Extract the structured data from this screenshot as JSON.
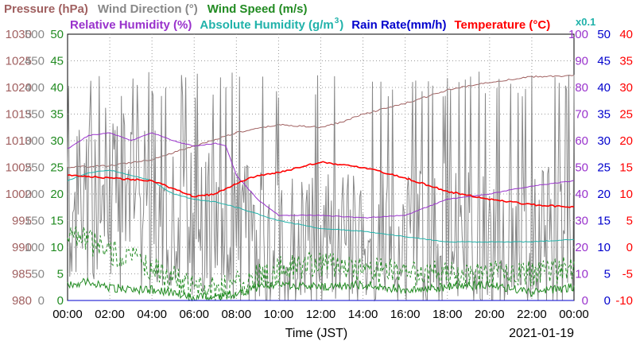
{
  "chart_data": {
    "type": "line",
    "date": "2021-01-19",
    "xlabel": "Time (JST)",
    "x_ticks": [
      "00:00",
      "02:00",
      "04:00",
      "06:00",
      "08:00",
      "10:00",
      "12:00",
      "14:00",
      "16:00",
      "18:00",
      "20:00",
      "22:00",
      "00:00"
    ],
    "multiplier_label": "x0.1",
    "grid": true,
    "axes": [
      {
        "id": "pressure",
        "label": "Pressure (hPa)",
        "color": "#a06060",
        "side": "left",
        "ylim": [
          980,
          1030
        ],
        "ticks": [
          "980",
          "985",
          "990",
          "995",
          "1000",
          "1005",
          "1010",
          "1015",
          "1020",
          "1025",
          "1030"
        ]
      },
      {
        "id": "wind_dir",
        "label": "Wind Direction (°)",
        "color": "#888888",
        "side": "left",
        "ylim": [
          0,
          500
        ],
        "ticks": [
          "0",
          "50",
          "100",
          "150",
          "200",
          "250",
          "300",
          "350",
          "400",
          "450",
          "500"
        ]
      },
      {
        "id": "wind_speed",
        "label": "Wind Speed (m/s)",
        "color": "#228b22",
        "side": "left",
        "ylim": [
          0,
          50
        ],
        "ticks": [
          "0",
          "5",
          "10",
          "15",
          "20",
          "25",
          "30",
          "35",
          "40",
          "45",
          "50"
        ]
      },
      {
        "id": "rh",
        "label": "Relative Humidity (%)",
        "color": "#9932cc",
        "side": "right",
        "ylim": [
          0,
          100
        ],
        "ticks": [
          "0",
          "10",
          "20",
          "30",
          "40",
          "50",
          "60",
          "70",
          "80",
          "90",
          "100"
        ]
      },
      {
        "id": "rain",
        "label": "Rain Rate(mm/h)",
        "color": "#0000cd",
        "side": "right",
        "ylim": [
          0,
          50
        ],
        "ticks": [
          "0",
          "5",
          "10",
          "15",
          "20",
          "25",
          "30",
          "35",
          "40",
          "45",
          "50"
        ]
      },
      {
        "id": "temp",
        "label": "Temperature (°C)",
        "color": "#ff0000",
        "side": "right",
        "ylim": [
          -10,
          40
        ],
        "ticks": [
          "-10",
          "-5",
          "0",
          "5",
          "10",
          "15",
          "20",
          "25",
          "30",
          "35",
          "40"
        ]
      }
    ],
    "abs_humidity_label": "Absolute Humidity (g/m",
    "abs_humidity_sup": "3",
    "abs_humidity_close": ")",
    "abs_humidity_color": "#20b2aa",
    "series": [
      {
        "axis": "pressure",
        "color": "#a06060",
        "x": [
          0,
          2,
          4,
          6,
          8,
          10,
          12,
          13,
          14,
          16,
          18,
          20,
          22,
          24
        ],
        "y": [
          1005,
          1005.3,
          1006.5,
          1009,
          1011.5,
          1013,
          1012.5,
          1013.5,
          1015,
          1017,
          1019.5,
          1021,
          1022,
          1022.2
        ]
      },
      {
        "axis": "wind_dir",
        "color": "#888888",
        "noise": 150,
        "spike": 0.25,
        "x": [
          0,
          1,
          2,
          3,
          4,
          5,
          6,
          7,
          8,
          10,
          12,
          14,
          16,
          18,
          20,
          22,
          24
        ],
        "y": [
          200,
          220,
          230,
          240,
          180,
          170,
          130,
          150,
          120,
          80,
          90,
          100,
          100,
          110,
          100,
          100,
          120
        ]
      },
      {
        "axis": "wind_speed",
        "color": "#228b22",
        "noise": 0.8,
        "x": [
          0,
          1,
          2,
          3,
          4,
          5,
          6,
          7,
          8,
          9,
          10,
          12,
          14,
          16,
          18,
          20,
          22,
          24
        ],
        "y": [
          3,
          3.5,
          2.5,
          2,
          2,
          1.5,
          0.5,
          0.8,
          1,
          2.5,
          3,
          2.5,
          3,
          2,
          2.5,
          3,
          1.5,
          2.5
        ]
      },
      {
        "axis": "wind_speed",
        "color": "#228b22",
        "dashed": true,
        "noise": 2.5,
        "x": [
          0,
          1,
          2,
          3,
          4,
          5,
          6,
          7,
          8,
          10,
          12,
          14,
          16,
          18,
          20,
          22,
          24
        ],
        "y": [
          13,
          11,
          9,
          8,
          6,
          4,
          2,
          2,
          3,
          6,
          7,
          6,
          5,
          5,
          5,
          5,
          6
        ]
      },
      {
        "axis": "rh",
        "color": "#9932cc",
        "x": [
          0,
          1,
          2,
          3,
          4,
          5,
          6,
          7,
          7.5,
          8,
          9,
          10,
          12,
          14,
          16,
          17,
          18,
          20,
          22,
          24
        ],
        "y": [
          57,
          62,
          63,
          60,
          63,
          60,
          58,
          59,
          58,
          47,
          38,
          32,
          32,
          31,
          32,
          35,
          38,
          40,
          43,
          45
        ]
      },
      {
        "axis": "abs_h",
        "color": "#20b2aa",
        "x": [
          0,
          1,
          2,
          3,
          4,
          5,
          6,
          7,
          8,
          10,
          12,
          14,
          16,
          18,
          20,
          22,
          24
        ],
        "y": [
          45,
          48,
          49,
          47,
          45,
          40,
          38,
          37,
          35,
          30,
          27,
          26,
          24,
          22,
          22,
          22,
          23
        ]
      },
      {
        "axis": "temp",
        "color": "#ff0000",
        "x": [
          0,
          2,
          4,
          5,
          6,
          7,
          8,
          9,
          10,
          12,
          13,
          14,
          16,
          18,
          20,
          22,
          24
        ],
        "y": [
          13.5,
          13,
          12.5,
          11,
          9.5,
          10,
          12,
          13.5,
          14,
          16,
          15.5,
          15,
          13,
          10.5,
          9,
          8,
          7.5
        ]
      },
      {
        "axis": "rain",
        "color": "#0000cd",
        "x": [
          0,
          24
        ],
        "y": [
          0,
          0
        ]
      }
    ]
  }
}
